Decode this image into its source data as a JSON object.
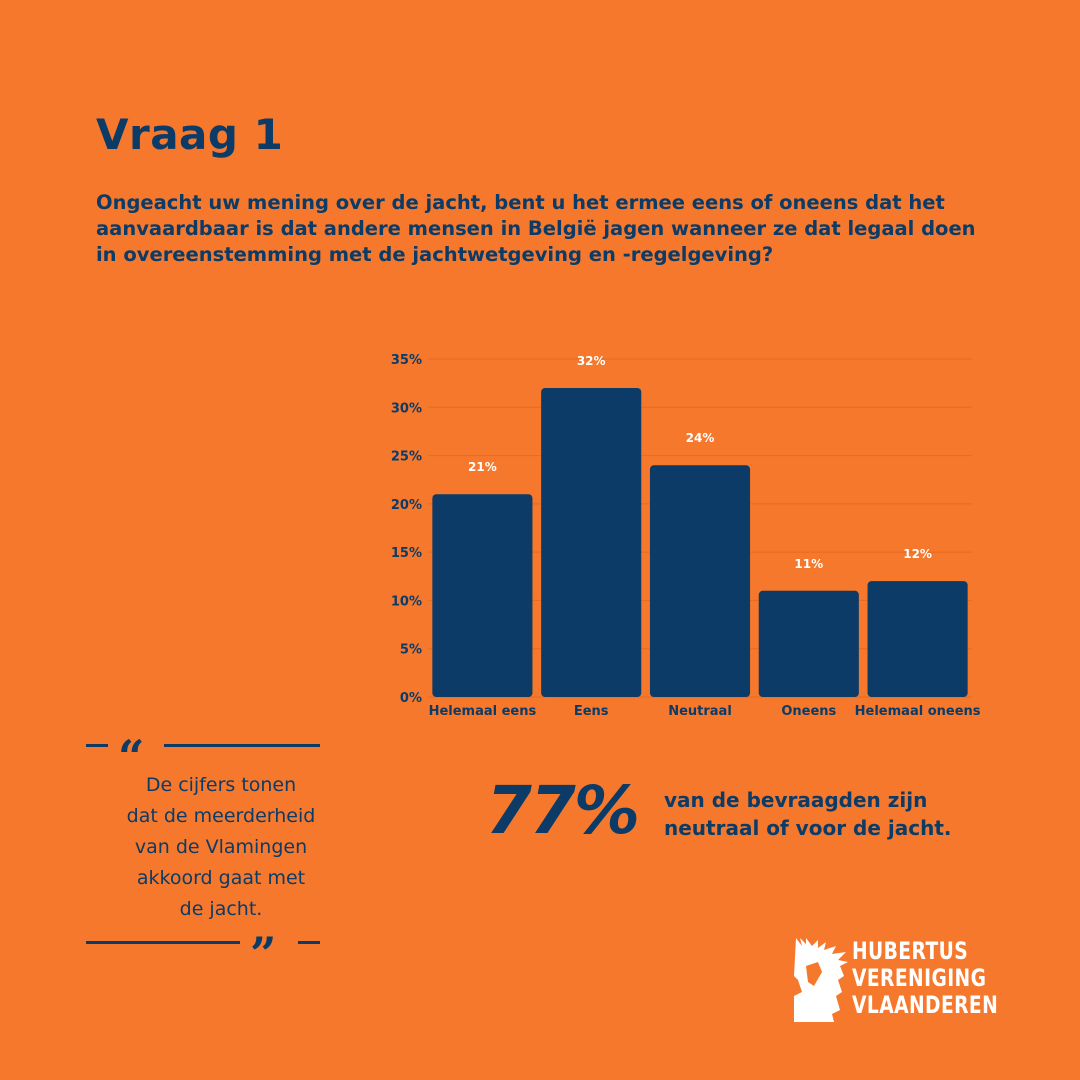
{
  "header": {
    "title": "Vraag 1",
    "question": "Ongeacht uw mening over de jacht, bent u het ermee eens of oneens dat het aanvaardbaar is dat andere mensen in België jagen wanneer ze dat legaal doen in overeenstemming met de jachtwetgeving en -regelgeving?"
  },
  "quote": {
    "text": "De cijfers tonen\ndat de meerderheid\nvan de Vlamingen\nakkoord gaat met\nde jacht.",
    "open_mark": "“",
    "close_mark": "”"
  },
  "stat": {
    "number": "77%",
    "text": "van de bevraagden zijn\nneutraal of voor de jacht."
  },
  "logo": {
    "line1": "HUBERTUS",
    "line2": "VERENIGING",
    "line3": "VLAANDEREN",
    "icon": "deer-head-icon"
  },
  "colors": {
    "background": "#F5782C",
    "primary": "#0B3B66",
    "label": "#FFFFFF"
  },
  "chart_data": {
    "type": "bar",
    "categories": [
      "Helemaal eens",
      "Eens",
      "Neutraal",
      "Oneens",
      "Helemaal oneens"
    ],
    "values": [
      21,
      32,
      24,
      11,
      12
    ],
    "value_labels": [
      "21%",
      "32%",
      "24%",
      "11%",
      "12%"
    ],
    "yticks": [
      "0%",
      "5%",
      "10%",
      "15%",
      "20%",
      "25%",
      "30%",
      "35%"
    ],
    "ytick_values": [
      0,
      5,
      10,
      15,
      20,
      25,
      30,
      35
    ],
    "ylim": [
      0,
      35
    ],
    "grid": true,
    "title": "",
    "xlabel": "",
    "ylabel": ""
  }
}
